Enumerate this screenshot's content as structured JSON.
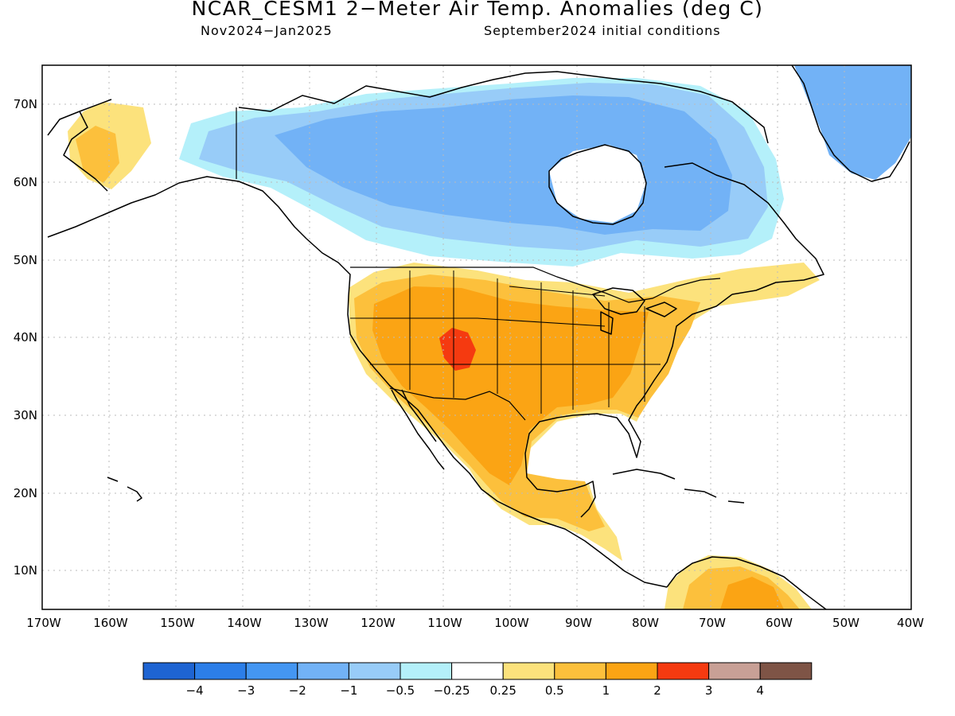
{
  "title": "NCAR_CESM1 2−Meter Air Temp. Anomalies (deg C)",
  "period": "Nov2024−Jan2025",
  "initial_conditions": "September2024 initial conditions",
  "lat_labels": [
    "70N",
    "60N",
    "50N",
    "40N",
    "30N",
    "20N",
    "10N"
  ],
  "lon_labels": [
    "170W",
    "160W",
    "150W",
    "140W",
    "130W",
    "120W",
    "110W",
    "100W",
    "90W",
    "80W",
    "70W",
    "60W",
    "50W",
    "40W"
  ],
  "colorbar": {
    "colors": [
      "#1e64d2",
      "#2c7ee8",
      "#4496f2",
      "#72b2f6",
      "#98ccf8",
      "#b4f0fa",
      "#ffffff",
      "#fce27c",
      "#fcc03c",
      "#fba414",
      "#f53a10",
      "#c8a096",
      "#7e5446"
    ],
    "labels": [
      "−4",
      "−3",
      "−2",
      "−1",
      "−0.5",
      "−0.25",
      "0.25",
      "0.5",
      "1",
      "2",
      "3",
      "4"
    ]
  },
  "map_colors": {
    "light_yellow": "#fce27c",
    "light_orange": "#fcc03c",
    "orange": "#fba414",
    "red": "#f53a10",
    "pale_cyan": "#b4f0fa",
    "light_blue": "#98ccf8",
    "mid_blue": "#72b2f6",
    "gridline": "#bbbbbb"
  }
}
